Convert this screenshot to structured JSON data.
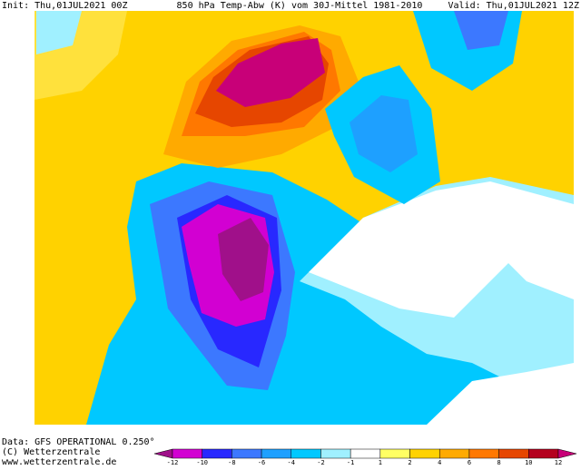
{
  "header": {
    "init": "Init: Thu,01JUL2021 00Z",
    "title": "850 hPa Temp-Abw (K) vom 30J-Mittel 1981-2010",
    "valid": "Valid: Thu,01JUL2021 12Z"
  },
  "footer": {
    "data": "Data: GFS OPERATIONAL 0.250°",
    "copyright": "(C) Wetterzentrale",
    "url": "www.wetterzentrale.de"
  },
  "colorbar": {
    "ticks": [
      -12,
      -10,
      -8,
      -6,
      -4,
      -2,
      -1,
      1,
      2,
      4,
      6,
      8,
      10,
      12
    ],
    "colors": [
      "#a0108a",
      "#d200d2",
      "#2828ff",
      "#3c78ff",
      "#1ea0ff",
      "#00c8ff",
      "#a0f0ff",
      "#ffffff",
      "#ffff64",
      "#ffd200",
      "#ffaa00",
      "#ff7800",
      "#e64600",
      "#b4001e",
      "#c80078"
    ]
  }
}
